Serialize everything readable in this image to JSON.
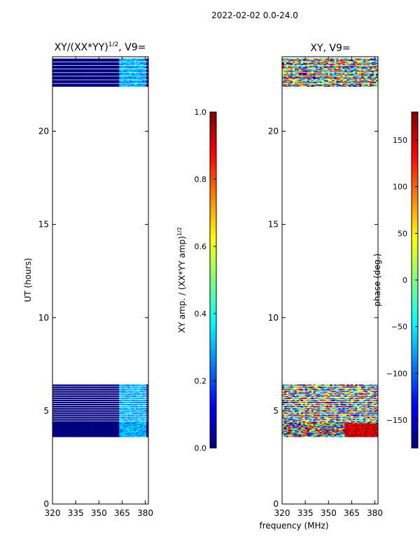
{
  "figure": {
    "suptitle": "2022-02-02 0.0-24.0",
    "xlabel_shared": "frequency (MHz)"
  },
  "colors": {
    "jet": [
      "#00007f",
      "#0000ff",
      "#007fff",
      "#00ffff",
      "#7fff7f",
      "#ffff00",
      "#ff7f00",
      "#ff0000",
      "#7f0000"
    ]
  },
  "chart_data": [
    {
      "type": "heatmap",
      "title_main": "XY/(XX*YY)",
      "title_exp": "1/2",
      "title_suffix": ", V9=",
      "ylabel": "UT (hours)",
      "xlim": [
        320,
        382
      ],
      "ylim": [
        0,
        24
      ],
      "xticks": [
        320,
        335,
        350,
        365,
        380
      ],
      "yticks": [
        0,
        5,
        10,
        15,
        20
      ],
      "data_ranges_hours": [
        [
          3.6,
          6.45
        ],
        [
          22.4,
          23.9
        ]
      ],
      "description_values": "mostly ~0.0 (dark blue) with ~0.3 (cyan) patches between 362 and 380 MHz",
      "colorbar": {
        "label_main": "XY amp. / (XX*YY amp)",
        "label_exp": "1/2",
        "range": [
          0.0,
          1.0
        ],
        "ticks": [
          "0.0",
          "0.2",
          "0.4",
          "0.6",
          "0.8",
          "1.0"
        ]
      }
    },
    {
      "type": "heatmap",
      "title": "XY, V9=",
      "xlim": [
        320,
        382
      ],
      "ylim": [
        0,
        24
      ],
      "xticks": [
        320,
        335,
        350,
        365,
        380
      ],
      "yticks": [
        0,
        5,
        10,
        15,
        20
      ],
      "data_ranges_hours": [
        [
          3.6,
          6.45
        ],
        [
          22.4,
          23.9
        ]
      ],
      "description_values": "phase values spanning -180 to 180 deg, noisy",
      "colorbar": {
        "label": "phase (deg.)",
        "range": [
          -180,
          180
        ],
        "ticks": [
          "−150",
          "−100",
          "−50",
          "0",
          "50",
          "100",
          "150"
        ]
      }
    }
  ]
}
